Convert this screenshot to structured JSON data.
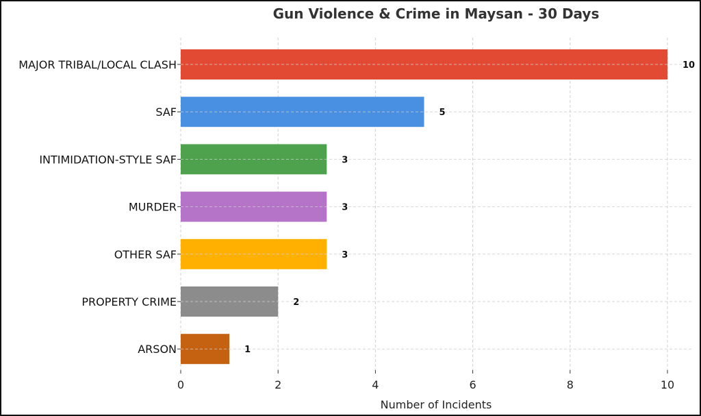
{
  "chart_data": {
    "type": "bar",
    "orientation": "horizontal",
    "title": "Gun Violence & Crime in Maysan - 30 Days",
    "xlabel": "Number of Incidents",
    "ylabel": "",
    "xlim": [
      0,
      10.5
    ],
    "xticks": [
      0,
      2,
      4,
      6,
      8,
      10
    ],
    "grid": true,
    "categories": [
      "MAJOR TRIBAL/LOCAL CLASH",
      "SAF",
      "INTIMIDATION-STYLE SAF",
      "MURDER",
      "OTHER SAF",
      "PROPERTY CRIME",
      "ARSON"
    ],
    "values": [
      10,
      5,
      3,
      3,
      3,
      2,
      1
    ],
    "colors": [
      "#e34a33",
      "#4a90e2",
      "#4ea24e",
      "#b574c8",
      "#ffb000",
      "#8c8c8c",
      "#c56212"
    ]
  }
}
